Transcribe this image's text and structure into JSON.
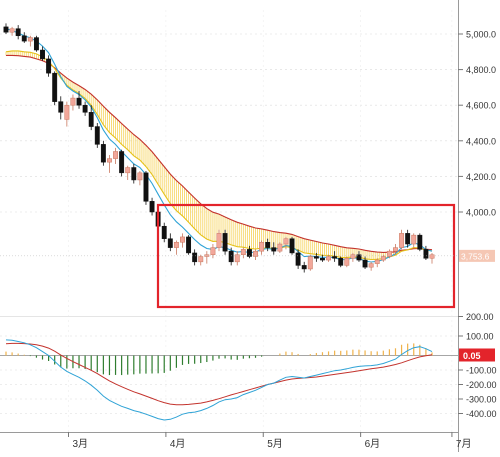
{
  "colors": {
    "up": "#f2a79a",
    "down": "#111111",
    "ema_short": "#2fa3d6",
    "ema_mid": "#e5c21b",
    "ema_long": "#c3332d",
    "band_fill": "#f7d76a",
    "highlight": "#e3242b",
    "grid": "#dcdcdc",
    "hist_pos": "#f0b24a",
    "hist_neg": "#2f7d2f",
    "dif": "#2fa3d6",
    "dea": "#c3332d",
    "badge_price": "#f5c7b4",
    "badge_macd": "#e3242b"
  },
  "chart_data": [
    {
      "type": "candlestick",
      "title": "",
      "xlabel": "",
      "ylabel": "",
      "x_ticks": [
        "3月",
        "4月",
        "5月",
        "6月",
        "7月"
      ],
      "y_ticks": [
        "4,000.0",
        "4,200.0",
        "4,400.0",
        "4,600.0",
        "4,800.0",
        "5,000.0"
      ],
      "ylim": [
        3600,
        5100
      ],
      "grid": true,
      "current_price_label": "3,753.6",
      "current_price": 3753.6,
      "candles": [
        [
          5040,
          5060,
          5000,
          5010
        ],
        [
          5010,
          5040,
          4990,
          5030
        ],
        [
          5030,
          5050,
          4970,
          4990
        ],
        [
          4990,
          5010,
          4950,
          4960
        ],
        [
          4960,
          4990,
          4930,
          4980
        ],
        [
          4980,
          4990,
          4900,
          4910
        ],
        [
          4910,
          4930,
          4850,
          4860
        ],
        [
          4860,
          4880,
          4760,
          4780
        ],
        [
          4780,
          4790,
          4600,
          4620
        ],
        [
          4620,
          4650,
          4520,
          4560
        ],
        [
          4520,
          4620,
          4480,
          4600
        ],
        [
          4600,
          4660,
          4570,
          4640
        ],
        [
          4640,
          4680,
          4580,
          4600
        ],
        [
          4600,
          4620,
          4540,
          4560
        ],
        [
          4560,
          4600,
          4460,
          4480
        ],
        [
          4480,
          4500,
          4360,
          4380
        ],
        [
          4380,
          4400,
          4260,
          4280
        ],
        [
          4280,
          4320,
          4220,
          4300
        ],
        [
          4300,
          4360,
          4270,
          4340
        ],
        [
          4340,
          4350,
          4200,
          4220
        ],
        [
          4220,
          4260,
          4180,
          4250
        ],
        [
          4250,
          4270,
          4160,
          4180
        ],
        [
          4180,
          4230,
          4150,
          4220
        ],
        [
          4220,
          4230,
          4040,
          4060
        ],
        [
          4060,
          4080,
          3980,
          4000
        ],
        [
          4000,
          4020,
          3900,
          3920
        ],
        [
          3920,
          3940,
          3830,
          3850
        ],
        [
          3850,
          3880,
          3780,
          3800
        ],
        [
          3800,
          3840,
          3760,
          3830
        ],
        [
          3830,
          3880,
          3800,
          3860
        ],
        [
          3860,
          3870,
          3760,
          3770
        ],
        [
          3770,
          3790,
          3700,
          3720
        ],
        [
          3720,
          3760,
          3700,
          3750
        ],
        [
          3750,
          3780,
          3710,
          3760
        ],
        [
          3760,
          3820,
          3740,
          3800
        ],
        [
          3800,
          3900,
          3780,
          3880
        ],
        [
          3880,
          3900,
          3760,
          3780
        ],
        [
          3780,
          3800,
          3700,
          3720
        ],
        [
          3720,
          3780,
          3700,
          3760
        ],
        [
          3760,
          3800,
          3740,
          3790
        ],
        [
          3790,
          3810,
          3740,
          3750
        ],
        [
          3750,
          3790,
          3730,
          3780
        ],
        [
          3780,
          3840,
          3760,
          3830
        ],
        [
          3830,
          3850,
          3780,
          3800
        ],
        [
          3800,
          3830,
          3760,
          3780
        ],
        [
          3780,
          3830,
          3770,
          3820
        ],
        [
          3820,
          3860,
          3790,
          3850
        ],
        [
          3850,
          3860,
          3760,
          3770
        ],
        [
          3770,
          3790,
          3680,
          3700
        ],
        [
          3700,
          3720,
          3660,
          3680
        ],
        [
          3680,
          3760,
          3670,
          3750
        ],
        [
          3750,
          3770,
          3720,
          3740
        ],
        [
          3740,
          3760,
          3720,
          3730
        ],
        [
          3730,
          3760,
          3720,
          3750
        ],
        [
          3750,
          3780,
          3720,
          3740
        ],
        [
          3740,
          3750,
          3690,
          3700
        ],
        [
          3700,
          3750,
          3690,
          3740
        ],
        [
          3740,
          3770,
          3720,
          3760
        ],
        [
          3760,
          3780,
          3720,
          3730
        ],
        [
          3730,
          3750,
          3680,
          3690
        ],
        [
          3690,
          3720,
          3670,
          3710
        ],
        [
          3710,
          3740,
          3690,
          3730
        ],
        [
          3730,
          3760,
          3720,
          3750
        ],
        [
          3750,
          3790,
          3740,
          3780
        ],
        [
          3780,
          3820,
          3760,
          3800
        ],
        [
          3800,
          3900,
          3790,
          3880
        ],
        [
          3880,
          3900,
          3800,
          3820
        ],
        [
          3820,
          3880,
          3800,
          3870
        ],
        [
          3870,
          3880,
          3780,
          3790
        ],
        [
          3790,
          3810,
          3730,
          3740
        ],
        [
          3740,
          3770,
          3710,
          3760
        ]
      ],
      "ema_short": [
        5030,
        5020,
        5005,
        4990,
        4978,
        4960,
        4932,
        4895,
        4830,
        4760,
        4705,
        4680,
        4660,
        4630,
        4590,
        4530,
        4460,
        4410,
        4380,
        4340,
        4305,
        4270,
        4250,
        4210,
        4160,
        4100,
        4040,
        3985,
        3945,
        3915,
        3880,
        3845,
        3815,
        3795,
        3790,
        3805,
        3800,
        3785,
        3775,
        3778,
        3772,
        3775,
        3790,
        3795,
        3790,
        3798,
        3812,
        3805,
        3778,
        3750,
        3752,
        3750,
        3745,
        3746,
        3744,
        3732,
        3733,
        3742,
        3740,
        3724,
        3719,
        3723,
        3732,
        3748,
        3765,
        3800,
        3807,
        3828,
        3815,
        3790,
        3780
      ],
      "ema_mid": [
        4900,
        4905,
        4905,
        4900,
        4897,
        4888,
        4872,
        4848,
        4805,
        4752,
        4712,
        4686,
        4665,
        4638,
        4600,
        4548,
        4490,
        4446,
        4416,
        4380,
        4350,
        4316,
        4292,
        4255,
        4210,
        4155,
        4100,
        4048,
        4008,
        3978,
        3942,
        3905,
        3872,
        3848,
        3835,
        3836,
        3828,
        3815,
        3805,
        3802,
        3795,
        3792,
        3797,
        3798,
        3795,
        3797,
        3805,
        3800,
        3786,
        3770,
        3766,
        3762,
        3757,
        3756,
        3752,
        3745,
        3744,
        3748,
        3746,
        3737,
        3733,
        3734,
        3738,
        3747,
        3758,
        3780,
        3787,
        3800,
        3798,
        3786,
        3781
      ],
      "ema_long": [
        4880,
        4880,
        4878,
        4874,
        4870,
        4860,
        4850,
        4835,
        4810,
        4780,
        4752,
        4730,
        4710,
        4688,
        4662,
        4630,
        4594,
        4560,
        4530,
        4497,
        4466,
        4435,
        4408,
        4375,
        4338,
        4297,
        4255,
        4213,
        4177,
        4146,
        4112,
        4078,
        4046,
        4019,
        3999,
        3988,
        3972,
        3956,
        3942,
        3932,
        3920,
        3910,
        3905,
        3898,
        3890,
        3884,
        3881,
        3874,
        3862,
        3850,
        3842,
        3834,
        3826,
        3820,
        3813,
        3805,
        3799,
        3796,
        3792,
        3785,
        3779,
        3775,
        3773,
        3774,
        3776,
        3785,
        3788,
        3794,
        3795,
        3791,
        3788
      ]
    },
    {
      "type": "macd",
      "title": "",
      "y_ticks": [
        "200.00",
        "100.00",
        "-100.00",
        "-200.00",
        "-300.00",
        "-400.00"
      ],
      "ylim": [
        -450,
        300
      ],
      "latest_label": "0.05",
      "latest_value": 0.05,
      "dif": [
        80,
        78,
        72,
        65,
        55,
        40,
        20,
        0,
        -40,
        -80,
        -110,
        -130,
        -150,
        -175,
        -205,
        -240,
        -280,
        -310,
        -330,
        -350,
        -365,
        -380,
        -390,
        -405,
        -420,
        -435,
        -445,
        -440,
        -425,
        -405,
        -395,
        -390,
        -380,
        -365,
        -345,
        -320,
        -305,
        -300,
        -290,
        -270,
        -255,
        -240,
        -220,
        -200,
        -190,
        -170,
        -150,
        -145,
        -150,
        -155,
        -145,
        -135,
        -125,
        -115,
        -105,
        -100,
        -92,
        -82,
        -75,
        -72,
        -70,
        -65,
        -55,
        -40,
        -25,
        5,
        25,
        40,
        45,
        35,
        20
      ],
      "dea": [
        60,
        62,
        62,
        61,
        59,
        55,
        48,
        38,
        22,
        2,
        -20,
        -42,
        -62,
        -82,
        -102,
        -125,
        -150,
        -175,
        -196,
        -215,
        -233,
        -250,
        -265,
        -280,
        -296,
        -312,
        -325,
        -335,
        -340,
        -340,
        -337,
        -333,
        -328,
        -320,
        -310,
        -298,
        -285,
        -272,
        -260,
        -248,
        -236,
        -224,
        -212,
        -200,
        -190,
        -180,
        -170,
        -162,
        -158,
        -155,
        -152,
        -148,
        -142,
        -136,
        -130,
        -124,
        -118,
        -112,
        -105,
        -98,
        -92,
        -86,
        -80,
        -72,
        -62,
        -50,
        -36,
        -22,
        -10,
        -2,
        4
      ]
    }
  ]
}
